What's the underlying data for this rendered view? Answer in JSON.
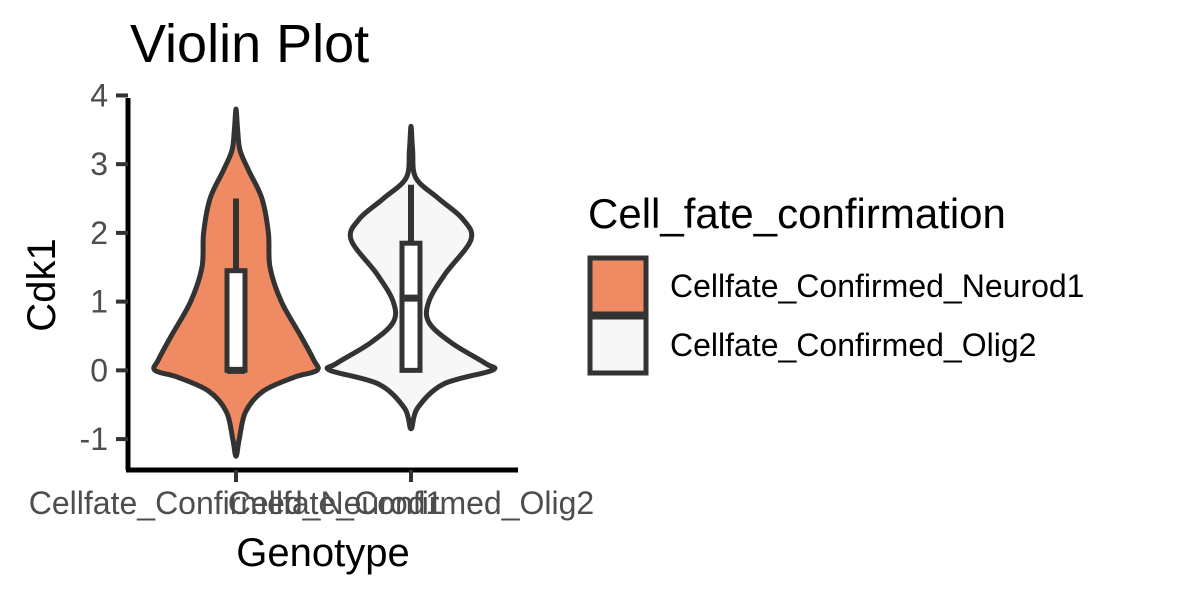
{
  "chart_data": {
    "type": "violin",
    "title": "Violin Plot",
    "xlabel": "Genotype",
    "ylabel": "Cdk1",
    "ylim": [
      -1.45,
      4.05
    ],
    "y_ticks": [
      "-1",
      "0",
      "1",
      "2",
      "3",
      "4"
    ],
    "categories": [
      "Cellfate_Confirmed_Neurod1",
      "Cellfate_Confirmed_Olig2"
    ],
    "legend": {
      "title": "Cell_fate_confirmation",
      "position": "right",
      "entries": [
        "Cellfate_Confirmed_Neurod1",
        "Cellfate_Confirmed_Olig2"
      ]
    },
    "colors": {
      "Cellfate_Confirmed_Neurod1": "#ef8a62",
      "Cellfate_Confirmed_Olig2": "#f7f7f7",
      "outline": "#333333"
    },
    "series": [
      {
        "category": "Cellfate_Confirmed_Neurod1",
        "violin": {
          "min": -1.25,
          "max": 3.8,
          "density": [
            [
              -1.25,
              0.0
            ],
            [
              -1.0,
              0.04
            ],
            [
              -0.6,
              0.12
            ],
            [
              -0.3,
              0.34
            ],
            [
              -0.1,
              0.72
            ],
            [
              0.0,
              1.0
            ],
            [
              0.15,
              0.96
            ],
            [
              0.5,
              0.8
            ],
            [
              1.0,
              0.56
            ],
            [
              1.5,
              0.42
            ],
            [
              2.0,
              0.4
            ],
            [
              2.5,
              0.32
            ],
            [
              2.9,
              0.16
            ],
            [
              3.2,
              0.05
            ],
            [
              3.5,
              0.02
            ],
            [
              3.8,
              0.0
            ]
          ]
        },
        "box": {
          "lower_whisker": 0.0,
          "q1": 0.0,
          "median": 0.0,
          "q3": 1.45,
          "upper_whisker": 2.5
        }
      },
      {
        "category": "Cellfate_Confirmed_Olig2",
        "violin": {
          "min": -0.85,
          "max": 3.55,
          "density": [
            [
              -0.85,
              0.0
            ],
            [
              -0.55,
              0.08
            ],
            [
              -0.2,
              0.4
            ],
            [
              0.0,
              1.0
            ],
            [
              0.1,
              0.92
            ],
            [
              0.4,
              0.5
            ],
            [
              0.7,
              0.22
            ],
            [
              1.0,
              0.22
            ],
            [
              1.4,
              0.42
            ],
            [
              1.9,
              0.74
            ],
            [
              2.2,
              0.64
            ],
            [
              2.5,
              0.34
            ],
            [
              2.8,
              0.06
            ],
            [
              3.2,
              0.02
            ],
            [
              3.55,
              0.0
            ]
          ]
        },
        "box": {
          "lower_whisker": 0.0,
          "q1": 0.0,
          "median": 1.05,
          "q3": 1.85,
          "upper_whisker": 2.7
        }
      }
    ]
  }
}
